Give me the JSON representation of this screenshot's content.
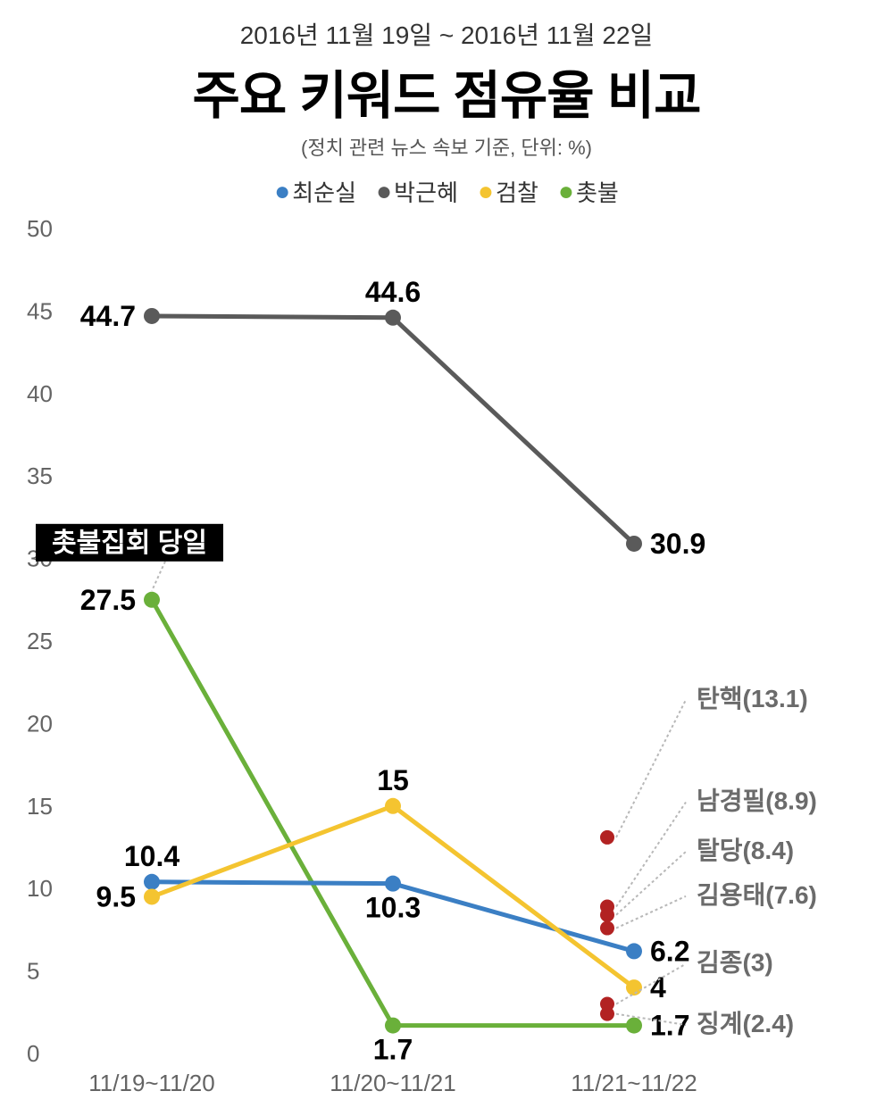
{
  "header": {
    "date_range": "2016년 11월 19일 ~ 2016년 11월 22일",
    "title": "주요 키워드 점유율 비교",
    "subtitle": "(정치 관련 뉴스 속보 기준, 단위: %)"
  },
  "legend": [
    {
      "label": "최순실",
      "color": "#3b7fc4"
    },
    {
      "label": "박근혜",
      "color": "#5a5a5a"
    },
    {
      "label": "검찰",
      "color": "#f4c430"
    },
    {
      "label": "촛불",
      "color": "#6ab03a"
    }
  ],
  "chart": {
    "type": "line",
    "background_color": "#ffffff",
    "xlabels": [
      "11/19~11/20",
      "11/20~11/21",
      "11/21~11/22"
    ],
    "ylim": [
      0,
      50
    ],
    "ytick_step": 5,
    "yticks": [
      0,
      5,
      10,
      15,
      20,
      25,
      30,
      35,
      40,
      45,
      50
    ],
    "line_width": 5,
    "marker_radius": 9,
    "data_label_fontsize": 32,
    "ytick_fontsize": 26,
    "xtick_fontsize": 26,
    "series": [
      {
        "name": "박근혜",
        "color": "#5a5a5a",
        "values": [
          44.7,
          44.6,
          30.9
        ],
        "labels": [
          "44.7",
          "44.6",
          "30.9"
        ],
        "label_pos": [
          "left",
          "above",
          "right"
        ]
      },
      {
        "name": "촛불",
        "color": "#6ab03a",
        "values": [
          27.5,
          1.7,
          1.7
        ],
        "labels": [
          "27.5",
          "1.7",
          "1.7"
        ],
        "label_pos": [
          "left",
          "below",
          "right"
        ]
      },
      {
        "name": "최순실",
        "color": "#3b7fc4",
        "values": [
          10.4,
          10.3,
          6.2
        ],
        "labels": [
          "10.4",
          "10.3",
          "6.2"
        ],
        "label_pos": [
          "above",
          "below",
          "right"
        ]
      },
      {
        "name": "검찰",
        "color": "#f4c430",
        "values": [
          9.5,
          15,
          4
        ],
        "labels": [
          "9.5",
          "15",
          "4"
        ],
        "label_pos": [
          "left",
          "above",
          "right"
        ]
      }
    ],
    "callout": {
      "text": "촛불집회 당일",
      "bg": "#000000",
      "text_color": "#ffffff",
      "fontsize": 30,
      "attach_series": "촛불",
      "attach_index": 0
    },
    "scatter_side": {
      "color": "#b22222",
      "marker_radius": 8,
      "x_index": 2,
      "points": [
        {
          "label": "탄핵",
          "value": 13.1,
          "display": "탄핵(13.1)"
        },
        {
          "label": "남경필",
          "value": 8.9,
          "display": "남경필(8.9)"
        },
        {
          "label": "탈당",
          "value": 8.4,
          "display": "탈당(8.4)"
        },
        {
          "label": "김용태",
          "value": 7.6,
          "display": "김용태(7.6)"
        },
        {
          "label": "김종",
          "value": 3.0,
          "display": "김종(3)"
        },
        {
          "label": "징계",
          "value": 2.4,
          "display": "징계(2.4)"
        }
      ],
      "label_fontsize": 28,
      "label_color": "#6b6b6b",
      "leader_color": "#b8b8b8"
    }
  }
}
